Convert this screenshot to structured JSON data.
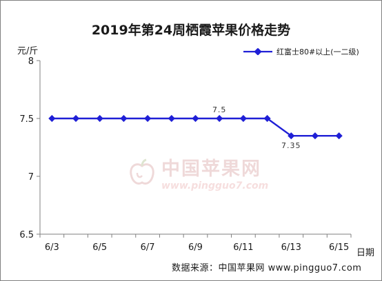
{
  "chart_data": {
    "type": "line",
    "title": "2019年第24周栖霞苹果价格走势",
    "ylabel": "元/斤",
    "xlabel": "日期",
    "ylim": [
      6.5,
      8
    ],
    "yticks": [
      "8",
      "7.5",
      "7",
      "6.5"
    ],
    "x_tick_labels": [
      "6/3",
      "6/5",
      "6/7",
      "6/9",
      "6/11",
      "6/13",
      "6/15"
    ],
    "categories": [
      "6/3",
      "6/4",
      "6/5",
      "6/6",
      "6/7",
      "6/8",
      "6/9",
      "6/10",
      "6/11",
      "6/12",
      "6/13",
      "6/14",
      "6/15"
    ],
    "series": [
      {
        "name": "红富士80#以上(一二级)",
        "values": [
          7.5,
          7.5,
          7.5,
          7.5,
          7.5,
          7.5,
          7.5,
          7.5,
          7.5,
          7.5,
          7.35,
          7.35,
          7.35
        ],
        "color": "#1f1fd6"
      }
    ],
    "data_labels": [
      {
        "index": 7,
        "text": "7.5"
      },
      {
        "index": 10,
        "text": "7.35"
      }
    ],
    "grid": false,
    "legend_position": "top-right"
  },
  "watermark": {
    "cn": "中国苹果网",
    "url": "www.pingguo7.com"
  },
  "source_text": "数据来源：中国苹果网 www.pingguo7.com"
}
